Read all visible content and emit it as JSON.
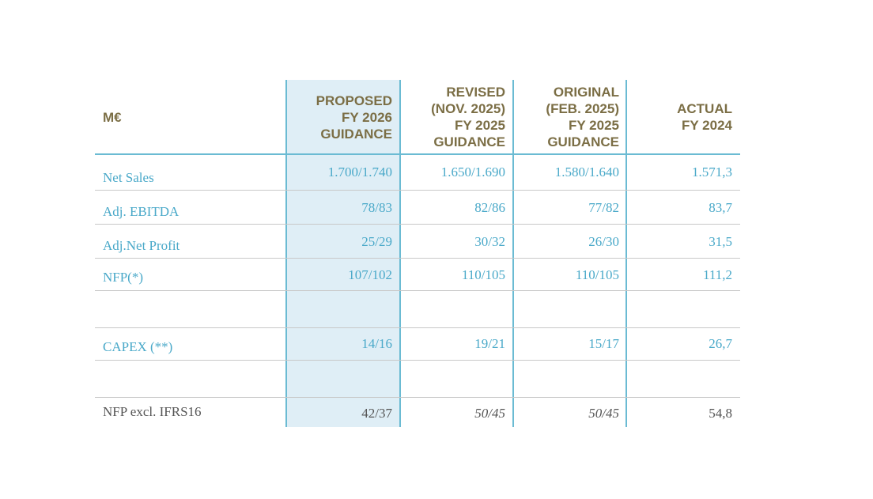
{
  "header": {
    "metric": "M€",
    "columns": [
      {
        "lines": [
          "PROPOSED",
          "FY 2026",
          "GUIDANCE"
        ]
      },
      {
        "lines": [
          "REVISED",
          "(NOV. 2025)",
          "FY 2025",
          "GUIDANCE"
        ]
      },
      {
        "lines": [
          "ORIGINAL",
          "(FEB. 2025)",
          "FY 2025",
          "GUIDANCE"
        ]
      },
      {
        "lines": [
          "ACTUAL",
          "FY 2024"
        ]
      }
    ]
  },
  "rows": [
    {
      "label": "Net Sales",
      "values": [
        "1.700/1.740",
        "1.650/1.690",
        "1.580/1.640",
        "1.571,3"
      ]
    },
    {
      "label": "Adj. EBITDA",
      "values": [
        "78/83",
        "82/86",
        "77/82",
        "83,7"
      ]
    },
    {
      "label": "Adj.Net Profit",
      "values": [
        "25/29",
        "30/32",
        "26/30",
        "31,5"
      ]
    },
    {
      "label": "NFP(*)",
      "values": [
        "107/102",
        "110/105",
        "110/105",
        "111,2"
      ]
    },
    {
      "label": "CAPEX (**)",
      "values": [
        "14/16",
        "19/21",
        "15/17",
        "26,7"
      ]
    },
    {
      "label": "NFP excl. IFRS16",
      "values": [
        "42/37",
        "50/45",
        "50/45",
        "54,8"
      ]
    }
  ],
  "colors": {
    "header_text": "#7b6e45",
    "body_text": "#4aa9c9",
    "footer_text": "#555555",
    "highlight_bg": "#dfeef6",
    "rule": "#6bbbd3"
  }
}
